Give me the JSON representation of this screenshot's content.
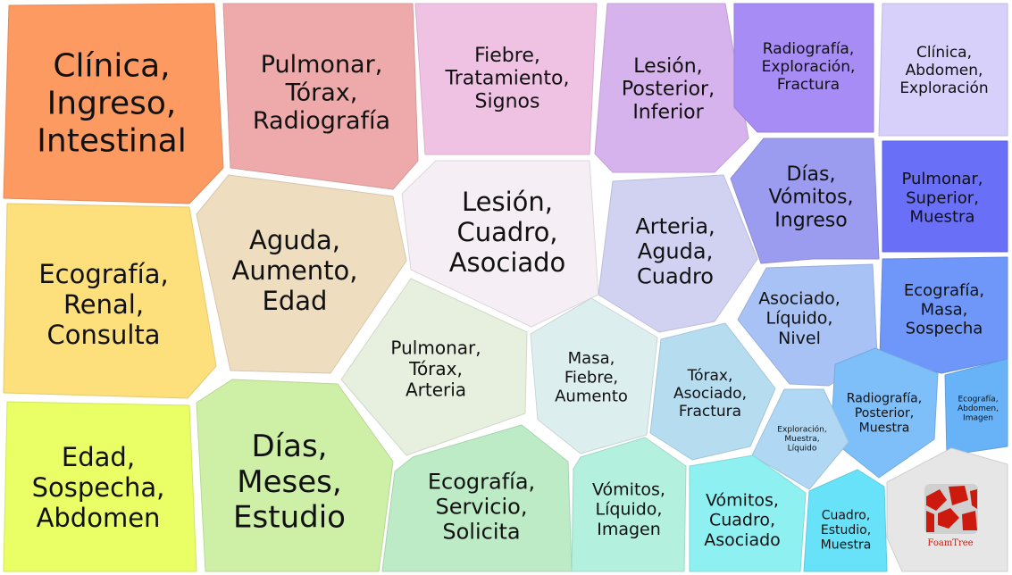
{
  "chart_data": {
    "type": "treemap",
    "title": "",
    "groups": [
      {
        "label": "Clínica, Ingreso, Intestinal",
        "color": "#fc9a62"
      },
      {
        "label": "Pulmonar, Tórax, Radiografía",
        "color": "#eeaaaa"
      },
      {
        "label": "Fiebre, Tratamiento, Signos",
        "color": "#efc2e3"
      },
      {
        "label": "Lesión, Posterior, Inferior",
        "color": "#d6b3ec"
      },
      {
        "label": "Radiografía, Exploración, Fractura",
        "color": "#a78cf6"
      },
      {
        "label": "Clínica, Abdomen, Exploración",
        "color": "#d6d0fb"
      },
      {
        "label": "Ecografía, Renal, Consulta",
        "color": "#fde07c"
      },
      {
        "label": "Aguda, Aumento, Edad",
        "color": "#eeddbf"
      },
      {
        "label": "Lesión, Cuadro, Asociado",
        "color": "#f5eef4"
      },
      {
        "label": "Arteria, Aguda, Cuadro",
        "color": "#d1d2f1"
      },
      {
        "label": "Días, Vómitos, Ingreso",
        "color": "#9b9bef"
      },
      {
        "label": "Pulmonar, Superior, Muestra",
        "color": "#6a6ff8"
      },
      {
        "label": "Pulmonar, Tórax, Arteria",
        "color": "#e7f0df"
      },
      {
        "label": "Masa, Fiebre, Aumento",
        "color": "#ddeeee"
      },
      {
        "label": "Tórax, Asociado, Fractura",
        "color": "#b6dcf0"
      },
      {
        "label": "Asociado, Líquido, Nivel",
        "color": "#a8c2f5"
      },
      {
        "label": "Ecografía, Masa, Sospecha",
        "color": "#6e97f9"
      },
      {
        "label": "Radiografía, Posterior, Muestra",
        "color": "#7ebef9"
      },
      {
        "label": "Ecografía, Abdomen, Imagen",
        "color": "#68b2f8"
      },
      {
        "label": "Exploración, Muestra, Líquido",
        "color": "#b0d7f3"
      },
      {
        "label": "Edad, Sospecha, Abdomen",
        "color": "#eaff66"
      },
      {
        "label": "Días, Meses, Estudio",
        "color": "#cdf0a6"
      },
      {
        "label": "Ecografía, Servicio, Solicita",
        "color": "#bcebc6"
      },
      {
        "label": "Vómitos, Líquido, Imagen",
        "color": "#b3f0de"
      },
      {
        "label": "Vómitos, Cuadro, Asociado",
        "color": "#8ff0f2"
      },
      {
        "label": "Cuadro, Estudio, Muestra",
        "color": "#68e2f8"
      }
    ],
    "logo": {
      "text": "FoamTree",
      "color": "#cc1a0e"
    }
  }
}
